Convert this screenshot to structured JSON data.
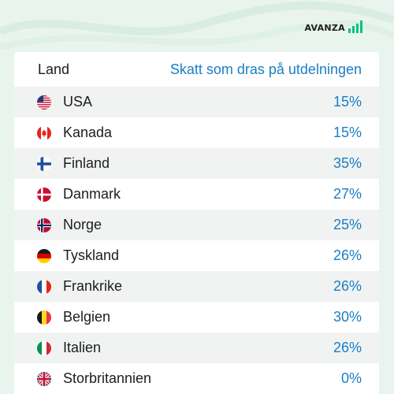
{
  "brand": {
    "name": "AVANZA"
  },
  "table": {
    "header_land": "Land",
    "header_tax": "Skatt som dras på utdelningen",
    "rows": [
      {
        "flag": "usa-flag-icon",
        "country": "USA",
        "tax": "15%"
      },
      {
        "flag": "canada-flag-icon",
        "country": "Kanada",
        "tax": "15%"
      },
      {
        "flag": "finland-flag-icon",
        "country": "Finland",
        "tax": "35%"
      },
      {
        "flag": "denmark-flag-icon",
        "country": "Danmark",
        "tax": "27%"
      },
      {
        "flag": "norway-flag-icon",
        "country": "Norge",
        "tax": "25%"
      },
      {
        "flag": "germany-flag-icon",
        "country": "Tyskland",
        "tax": "26%"
      },
      {
        "flag": "france-flag-icon",
        "country": "Frankrike",
        "tax": "26%"
      },
      {
        "flag": "belgium-flag-icon",
        "country": "Belgien",
        "tax": "30%"
      },
      {
        "flag": "italy-flag-icon",
        "country": "Italien",
        "tax": "26%"
      },
      {
        "flag": "uk-flag-icon",
        "country": "Storbritannien",
        "tax": "0%"
      }
    ]
  },
  "colors": {
    "accent": "#1a7ec4",
    "brand_green": "#00c281",
    "background": "#e9f4ee"
  }
}
